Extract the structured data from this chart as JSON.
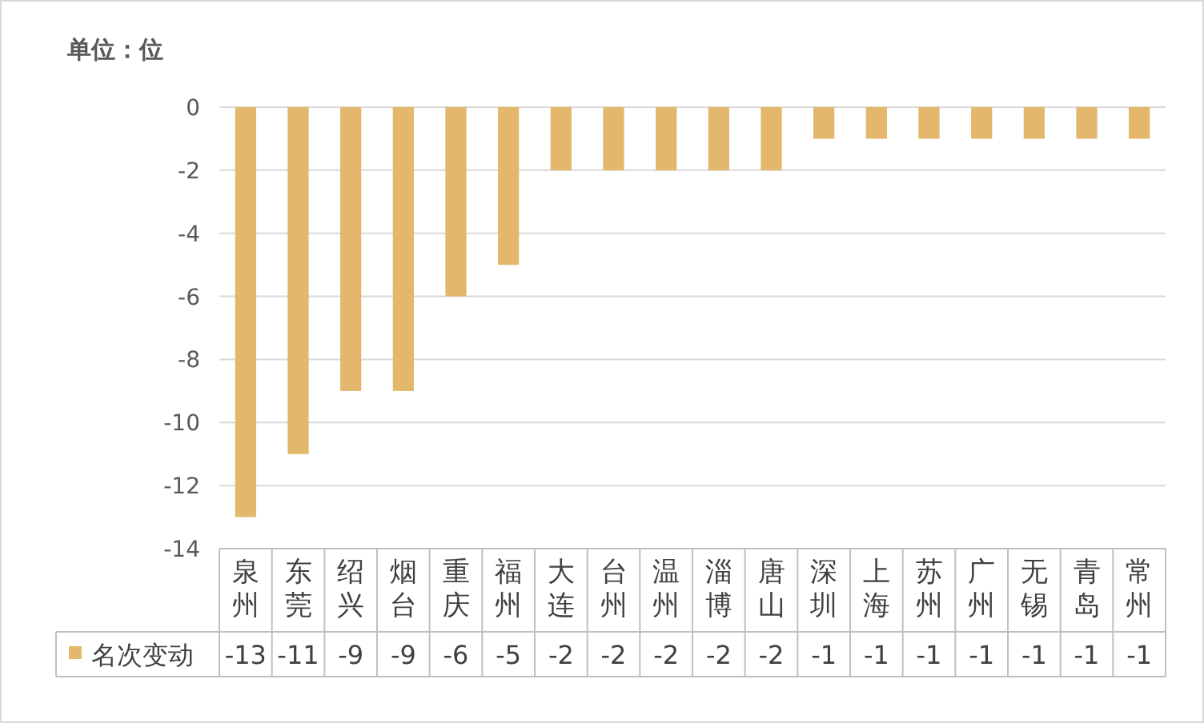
{
  "chart_data": {
    "type": "bar",
    "ylabel": "单位：位",
    "categories": [
      "泉州",
      "东莞",
      "绍兴",
      "烟台",
      "重庆",
      "福州",
      "大连",
      "台州",
      "温州",
      "淄博",
      "唐山",
      "深圳",
      "上海",
      "苏州",
      "广州",
      "无锡",
      "青岛",
      "常州"
    ],
    "series": [
      {
        "name": "名次变动",
        "color": "#e3b86c",
        "values": [
          -13,
          -11,
          -9,
          -9,
          -6,
          -5,
          -2,
          -2,
          -2,
          -2,
          -2,
          -1,
          -1,
          -1,
          -1,
          -1,
          -1,
          -1
        ]
      }
    ],
    "ylim": [
      -14,
      0
    ],
    "yticks": [
      0,
      -2,
      -4,
      -6,
      -8,
      -10,
      -12,
      -14
    ],
    "grid": "y",
    "data_labels": true,
    "legend": "bottom"
  }
}
